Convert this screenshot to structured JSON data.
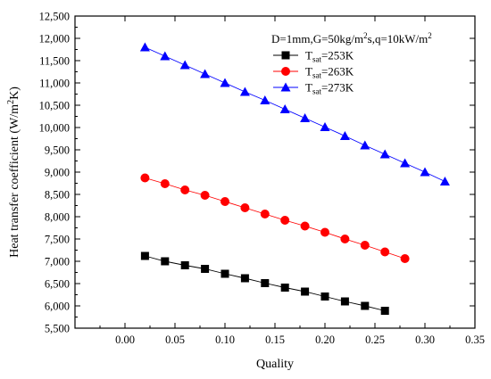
{
  "chart_data": {
    "type": "scatter",
    "xlabel": "Quality",
    "ylabel": "Heat transfer coefficient (W/m²K)",
    "xlim": [
      -0.05,
      0.35
    ],
    "ylim": [
      5500,
      12500
    ],
    "x_ticks": [
      0.0,
      0.05,
      0.1,
      0.15,
      0.2,
      0.25,
      0.3,
      0.35
    ],
    "x_tick_labels": [
      "0.00",
      "0.05",
      "0.10",
      "0.15",
      "0.20",
      "0.25",
      "0.30",
      "0.35"
    ],
    "y_ticks": [
      5500,
      6000,
      6500,
      7000,
      7500,
      8000,
      8500,
      9000,
      9500,
      10000,
      10500,
      11000,
      11500,
      12000,
      12500
    ],
    "y_tick_labels": [
      "5,500",
      "6,000",
      "6,500",
      "7,000",
      "7,500",
      "8,000",
      "8,500",
      "9,000",
      "9,500",
      "10,000",
      "10,500",
      "11,000",
      "11,500",
      "12,000",
      "12,500"
    ],
    "grid": false,
    "legend_position": "top-right",
    "annotation": "D=1mm,G=50kg/m²s,q=10kW/m²",
    "series": [
      {
        "name": "Tsat=253K",
        "name_base": "T",
        "name_sub": "sat",
        "name_rest": "=253K",
        "color": "#000000",
        "marker": "square",
        "x": [
          0.02,
          0.04,
          0.06,
          0.08,
          0.1,
          0.12,
          0.14,
          0.16,
          0.18,
          0.2,
          0.22,
          0.24,
          0.26
        ],
        "y": [
          7120,
          7000,
          6910,
          6830,
          6720,
          6620,
          6510,
          6410,
          6320,
          6210,
          6100,
          6000,
          5890
        ]
      },
      {
        "name": "Tsat=263K",
        "name_base": "T",
        "name_sub": "sat",
        "name_rest": "=263K",
        "color": "#ff0000",
        "marker": "circle",
        "x": [
          0.02,
          0.04,
          0.06,
          0.08,
          0.1,
          0.12,
          0.14,
          0.16,
          0.18,
          0.2,
          0.22,
          0.24,
          0.26,
          0.28
        ],
        "y": [
          8870,
          8740,
          8600,
          8480,
          8340,
          8200,
          8060,
          7920,
          7790,
          7650,
          7500,
          7360,
          7210,
          7060
        ]
      },
      {
        "name": "Tsat=273K",
        "name_base": "T",
        "name_sub": "sat",
        "name_rest": "=273K",
        "color": "#0000ff",
        "marker": "triangle",
        "x": [
          0.02,
          0.04,
          0.06,
          0.08,
          0.1,
          0.12,
          0.14,
          0.16,
          0.18,
          0.2,
          0.22,
          0.24,
          0.26,
          0.28,
          0.3,
          0.32
        ],
        "y": [
          11800,
          11600,
          11400,
          11200,
          11000,
          10800,
          10610,
          10410,
          10210,
          10010,
          9810,
          9600,
          9400,
          9200,
          9000,
          8790
        ]
      }
    ]
  }
}
